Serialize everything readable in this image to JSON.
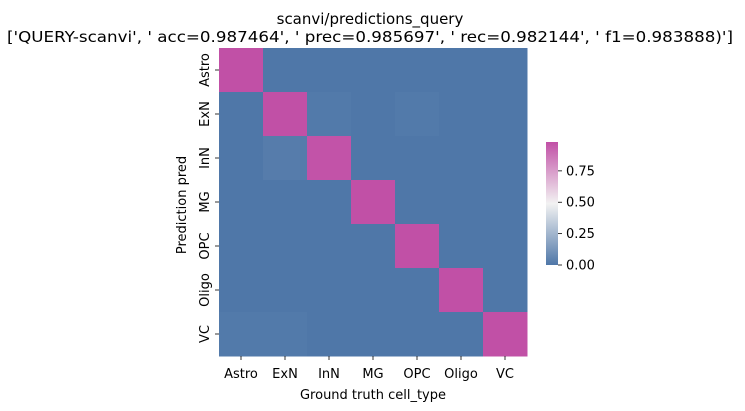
{
  "chart_data": {
    "type": "heatmap",
    "title": "scanvi/predictions_query",
    "subtitle": "['QUERY-scanvi', ' acc=0.987464', '  prec=0.985697', ' rec=0.982144', ' f1=0.983888)']",
    "xlabel": "Ground truth cell_type",
    "ylabel": "Prediction pred",
    "x_categories": [
      "Astro",
      "ExN",
      "InN",
      "MG",
      "OPC",
      "Oligo",
      "VC"
    ],
    "y_categories": [
      "Astro",
      "ExN",
      "InN",
      "MG",
      "OPC",
      "Oligo",
      "VC"
    ],
    "values": [
      [
        0.99,
        0.0,
        0.0,
        0.0,
        0.0,
        0.0,
        0.0
      ],
      [
        0.0,
        0.98,
        0.01,
        0.0,
        0.01,
        0.0,
        0.0
      ],
      [
        0.0,
        0.02,
        0.97,
        0.0,
        0.0,
        0.0,
        0.0
      ],
      [
        0.0,
        0.0,
        0.0,
        0.99,
        0.0,
        0.0,
        0.0
      ],
      [
        0.0,
        0.0,
        0.0,
        0.0,
        0.98,
        0.0,
        0.0
      ],
      [
        0.0,
        0.0,
        0.0,
        0.0,
        0.0,
        0.99,
        0.0
      ],
      [
        0.01,
        0.01,
        0.0,
        0.0,
        0.0,
        0.0,
        0.99
      ]
    ],
    "colorbar": {
      "range": [
        0,
        0.98
      ],
      "ticks": [
        0.0,
        0.25,
        0.5,
        0.75
      ],
      "tick_labels": [
        "0.00",
        "0.25",
        "0.50",
        "0.75"
      ],
      "colors": [
        "#4f77a8",
        "#f2f2f2",
        "#c150a6"
      ]
    },
    "grid": false
  }
}
